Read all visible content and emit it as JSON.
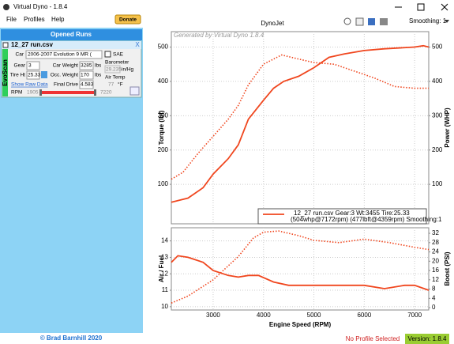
{
  "window": {
    "title": "Virtual Dyno - 1.8.4"
  },
  "menu": [
    "File",
    "Profiles",
    "Help"
  ],
  "donate": "Donate",
  "toolbar": {
    "smoothing": "Smoothing: 1"
  },
  "panel": {
    "header": "Opened Runs",
    "run": {
      "file": "12_27 run.csv",
      "close": "X",
      "source": "EvoScan",
      "car_label": "Car",
      "car": "2006-2007 Evolution 9 MR (",
      "sae": "SAE",
      "gear_label": "Gear",
      "gear": 3,
      "car_weight_label": "Car Weight",
      "car_weight": 3285,
      "car_weight_unit": "lbs",
      "barometer_label": "Barometer",
      "barometer": 29.235,
      "barometer_unit": "in/Hg",
      "tire_label": "Tire Ht",
      "tire": 25.33,
      "occ_weight_label": "Occ. Weight",
      "occ_weight": 170,
      "occ_weight_unit": "lbs",
      "air_temp_label": "Air Temp",
      "air_temp": 77,
      "air_temp_unit": "°F",
      "raw_data": "Show Raw Data",
      "final_drive_label": "Final Drive",
      "final_drive": 4.583,
      "rpm_label": "RPM",
      "rpm_min": 1905,
      "rpm_max": 7220
    }
  },
  "footer": {
    "copyright": "© Brad Barnhill 2020",
    "profile": "No Profile Selected",
    "version": "Version: 1.8.4"
  },
  "charts": {
    "title": "DynoJet",
    "watermark": "Generated by Virtual Dyno 1.8.4",
    "x_label": "Engine Speed (RPM)",
    "xlim": [
      2170,
      7280
    ],
    "xticks": [
      3000,
      4000,
      5000,
      6000,
      7000
    ],
    "grid": true,
    "panels": [
      {
        "type": "line",
        "y_label": "Torque (lbf)",
        "y2_label": "Power (WHP)",
        "ylim": [
          -15,
          545
        ],
        "yticks": [
          100,
          200,
          300,
          400,
          500
        ],
        "y2lim": [
          -15,
          545
        ],
        "y2ticks": [
          100,
          200,
          300,
          400,
          500
        ],
        "legend": [
          "12_27 run.csv Gear:3 Wt:3455 Tire:25.33",
          "(504whp@7172rpm) (477lbft@4359rpm) Smoothing:1"
        ],
        "series": [
          {
            "color": "#f0461e",
            "style": "dotted",
            "axis": "y",
            "x": [
              2170,
              2400,
              2700,
              3000,
              3300,
              3500,
              3700,
              4000,
              4359,
              4700,
              5000,
              5400,
              5800,
              6200,
              6600,
              7000,
              7280
            ],
            "values": [
              115,
              135,
              190,
              240,
              290,
              330,
              390,
              450,
              477,
              465,
              455,
              450,
              430,
              410,
              385,
              380,
              380
            ]
          },
          {
            "color": "#f0461e",
            "style": "solid",
            "axis": "y2",
            "x": [
              2170,
              2500,
              2800,
              3000,
              3300,
              3500,
              3700,
              4000,
              4200,
              4400,
              4700,
              5000,
              5300,
              5600,
              6000,
              6400,
              7000,
              7172,
              7280
            ],
            "values": [
              48,
              60,
              90,
              130,
              175,
              215,
              290,
              345,
              380,
              400,
              415,
              440,
              470,
              480,
              490,
              495,
              500,
              504,
              500
            ]
          }
        ]
      },
      {
        "type": "line",
        "y_label": "Air / Fuel",
        "y2_label": "Boost (PSI)",
        "ylim": [
          9.8,
          14.8
        ],
        "yticks": [
          10,
          11,
          12,
          13,
          14
        ],
        "y2lim": [
          -1,
          34.4
        ],
        "y2ticks": [
          0,
          4,
          8,
          12,
          16,
          20,
          24,
          28,
          32
        ],
        "series": [
          {
            "color": "#f0461e",
            "style": "solid",
            "axis": "y",
            "x": [
              2170,
              2300,
              2500,
              2800,
              3000,
              3300,
              3500,
              3700,
              3900,
              4200,
              4500,
              5000,
              5500,
              6000,
              6400,
              6800,
              7000,
              7280
            ],
            "values": [
              12.7,
              13.1,
              13.0,
              12.7,
              12.2,
              11.9,
              11.8,
              11.9,
              11.9,
              11.5,
              11.3,
              11.3,
              11.3,
              11.3,
              11.1,
              11.3,
              11.3,
              11.0
            ]
          },
          {
            "color": "#f0461e",
            "style": "dotted",
            "axis": "y2",
            "x": [
              2170,
              2500,
              3000,
              3500,
              3800,
              4000,
              4300,
              4700,
              5000,
              5500,
              6000,
              6500,
              7000,
              7280
            ],
            "values": [
              2,
              5,
              12,
              22,
              30,
              32.5,
              33,
              31,
              29,
              28,
              29.5,
              28,
              26,
              25
            ]
          }
        ]
      }
    ]
  }
}
